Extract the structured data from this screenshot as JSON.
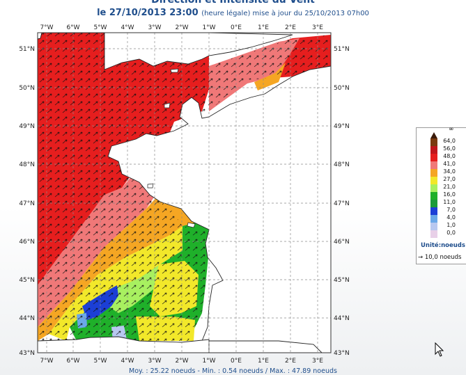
{
  "header": {
    "title": "Direction et Intensité du Vent",
    "date": "le 27/10/2013 23:00",
    "note": "(heure légale) mise à jour du 25/10/2013 07h00"
  },
  "axes": {
    "lon_labels": [
      "7°W",
      "6°W",
      "5°W",
      "4°W",
      "3°W",
      "2°W",
      "1°W",
      "0°E",
      "1°E",
      "2°E",
      "3°E"
    ],
    "lat_labels": [
      "51°N",
      "50°N",
      "49°N",
      "48°N",
      "47°N",
      "46°N",
      "45°N",
      "44°N",
      "43°N"
    ]
  },
  "legend": {
    "top_symbol": "∞",
    "levels": [
      "64,0",
      "56,0",
      "48,0",
      "41,0",
      "34,0",
      "27,0",
      "21,0",
      "16,0",
      "11,0",
      "7,0",
      "4,0",
      "1,0",
      "0,0"
    ],
    "colors": [
      "#3a1a0a",
      "#7a3a10",
      "#c0161c",
      "#e61e1e",
      "#f07878",
      "#f5a623",
      "#f2e82a",
      "#a8f060",
      "#1fb02a",
      "#1a9a3a",
      "#1c3fd6",
      "#6aa8e8",
      "#b8c8f0",
      "#e8d0e8"
    ],
    "unit": "Unité:noeuds",
    "reference": "10,0 noeuds"
  },
  "footer": {
    "text": "Moy. : 25.22 noeuds  -  Min. : 0.54 noeuds / Max. : 47.89 noeuds"
  },
  "colors": {
    "title": "#1f4e8c",
    "land": "#ffffff",
    "grid": "#8a8a8a"
  }
}
